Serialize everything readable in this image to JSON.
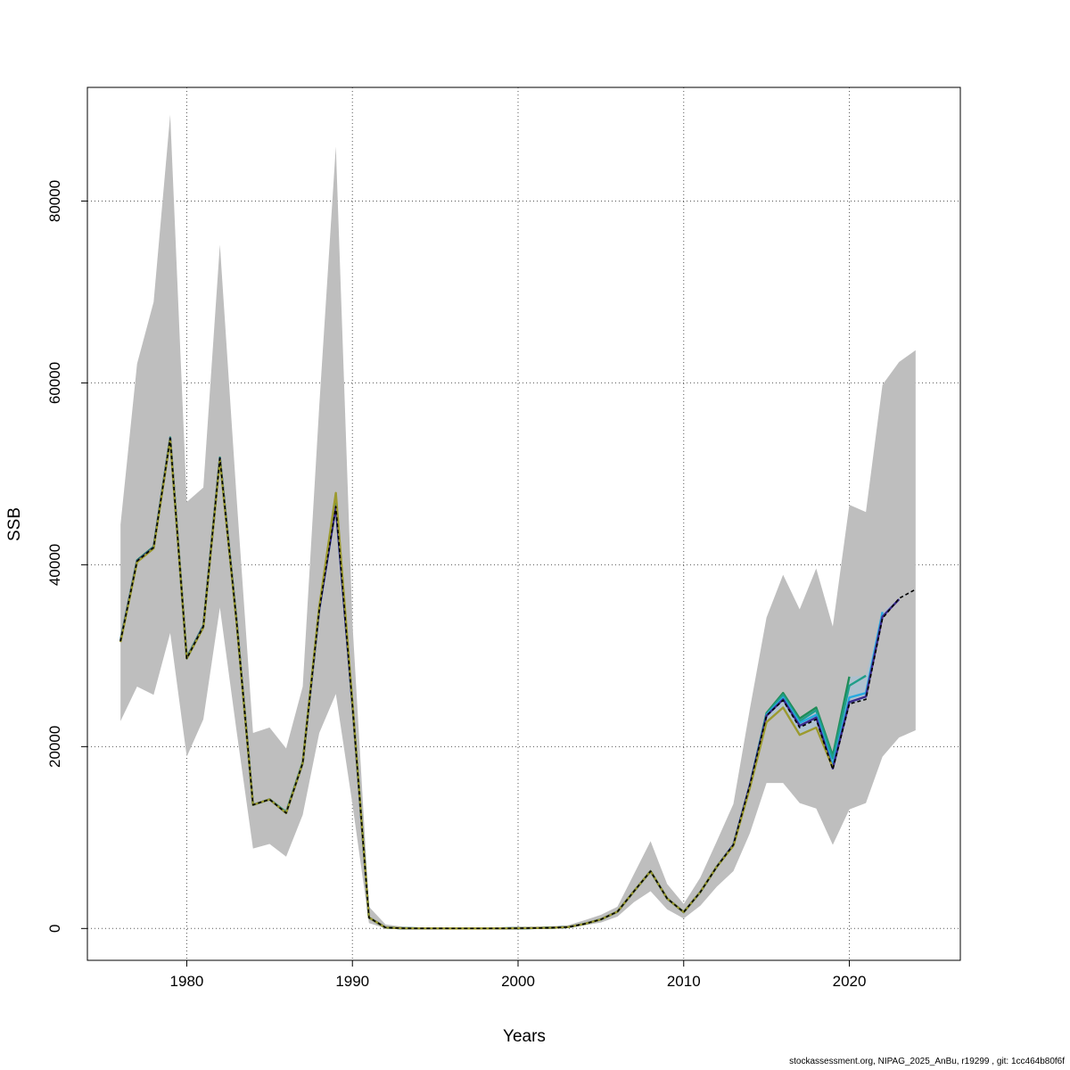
{
  "chart_data": {
    "type": "line",
    "title": "",
    "xlabel": "Years",
    "ylabel": "SSB",
    "xlim": [
      1974,
      2026.7
    ],
    "ylim": [
      -3500,
      92500
    ],
    "xticks": [
      1980,
      1990,
      2000,
      2010,
      2020
    ],
    "yticks": [
      0,
      20000,
      40000,
      60000,
      80000
    ],
    "grid": true,
    "legend": "none",
    "band_color": "#bebebe",
    "band_inner_color": "#a8c2d6",
    "band": {
      "x": [
        1976,
        1977,
        1978,
        1979,
        1980,
        1981,
        1982,
        1983,
        1984,
        1985,
        1986,
        1987,
        1988,
        1989,
        1990,
        1991,
        1992,
        1993,
        1994,
        1995,
        1996,
        1997,
        1998,
        1999,
        2000,
        2001,
        2002,
        2003,
        2004,
        2005,
        2006,
        2007,
        2008,
        2009,
        2010,
        2011,
        2012,
        2013,
        2014,
        2015,
        2016,
        2017,
        2018,
        2019,
        2020,
        2021,
        2022,
        2023,
        2024
      ],
      "lower": [
        22800,
        26600,
        25700,
        32500,
        18900,
        23000,
        35300,
        21800,
        8800,
        9300,
        7900,
        12500,
        21500,
        25800,
        13700,
        600,
        20,
        0,
        0,
        0,
        0,
        0,
        0,
        0,
        20,
        40,
        50,
        100,
        350,
        650,
        1300,
        2900,
        4100,
        2100,
        1100,
        2500,
        4600,
        6300,
        10500,
        16000,
        16000,
        13800,
        13200,
        9200,
        13100,
        13800,
        18900,
        21000,
        21800
      ],
      "upper": [
        44400,
        62100,
        68900,
        89500,
        46900,
        48500,
        75200,
        47600,
        21500,
        22100,
        19800,
        26600,
        57500,
        86000,
        33700,
        2400,
        450,
        200,
        100,
        100,
        50,
        50,
        50,
        100,
        150,
        200,
        250,
        350,
        900,
        1500,
        2400,
        6000,
        9600,
        4900,
        2700,
        5600,
        9600,
        13700,
        24200,
        34200,
        38900,
        35100,
        39600,
        33200,
        46600,
        45800,
        59800,
        62300,
        63600
      ]
    },
    "series": [
      {
        "color": "#1e8c57",
        "x": [
          1976,
          1977,
          1978,
          1979,
          1980,
          1981,
          1982,
          1983,
          1984,
          1985,
          1986,
          1987,
          1988,
          1989,
          1990,
          1991,
          1992,
          1993,
          1994,
          1995,
          1996,
          1997,
          1998,
          1999,
          2000,
          2001,
          2002,
          2003,
          2004,
          2005,
          2006,
          2007,
          2008,
          2009,
          2010,
          2011,
          2012,
          2013,
          2014,
          2015,
          2016,
          2017,
          2018,
          2019,
          2020
        ],
        "values": [
          31700,
          40500,
          42000,
          54000,
          29800,
          33300,
          51800,
          34000,
          13600,
          14200,
          12800,
          18300,
          35300,
          46700,
          24800,
          1200,
          100,
          30,
          10,
          10,
          5,
          5,
          5,
          10,
          30,
          50,
          80,
          150,
          500,
          1000,
          1850,
          4100,
          6300,
          3300,
          1800,
          4000,
          6800,
          9200,
          15800,
          23700,
          25900,
          23100,
          24300,
          19000,
          27700
        ]
      },
      {
        "color": "#1f9e89",
        "x": [
          1976,
          1977,
          1978,
          1979,
          1980,
          1981,
          1982,
          1983,
          1984,
          1985,
          1986,
          1987,
          1988,
          1989,
          1990,
          1991,
          1992,
          1993,
          1994,
          1995,
          1996,
          1997,
          1998,
          1999,
          2000,
          2001,
          2002,
          2003,
          2004,
          2005,
          2006,
          2007,
          2008,
          2009,
          2010,
          2011,
          2012,
          2013,
          2014,
          2015,
          2016,
          2017,
          2018,
          2019,
          2020,
          2021
        ],
        "values": [
          31600,
          40400,
          41900,
          53900,
          29700,
          33200,
          51700,
          33900,
          13600,
          14200,
          12800,
          18200,
          35200,
          46500,
          24700,
          1200,
          100,
          30,
          10,
          10,
          5,
          5,
          5,
          10,
          30,
          50,
          80,
          150,
          500,
          1000,
          1850,
          4100,
          6300,
          3300,
          1800,
          4000,
          6800,
          9200,
          15800,
          23600,
          25700,
          22800,
          24000,
          18700,
          26700,
          27800
        ]
      },
      {
        "color": "#26a9e0",
        "x": [
          1976,
          1977,
          1978,
          1979,
          1980,
          1981,
          1982,
          1983,
          1984,
          1985,
          1986,
          1987,
          1988,
          1989,
          1990,
          1991,
          1992,
          1993,
          1994,
          1995,
          1996,
          1997,
          1998,
          1999,
          2000,
          2001,
          2002,
          2003,
          2004,
          2005,
          2006,
          2007,
          2008,
          2009,
          2010,
          2011,
          2012,
          2013,
          2014,
          2015,
          2016,
          2017,
          2018,
          2019,
          2020,
          2021,
          2022
        ],
        "values": [
          31600,
          40400,
          41900,
          53900,
          29700,
          33200,
          51700,
          33900,
          13600,
          14200,
          12700,
          18200,
          35100,
          46400,
          24600,
          1200,
          100,
          30,
          10,
          10,
          5,
          5,
          5,
          10,
          30,
          50,
          80,
          150,
          500,
          1000,
          1850,
          4100,
          6300,
          3300,
          1800,
          4000,
          6800,
          9200,
          15800,
          23500,
          25400,
          22600,
          23500,
          18000,
          25400,
          25900,
          34800
        ]
      },
      {
        "color": "#3b2a8c",
        "x": [
          1976,
          1977,
          1978,
          1979,
          1980,
          1981,
          1982,
          1983,
          1984,
          1985,
          1986,
          1987,
          1988,
          1989,
          1990,
          1991,
          1992,
          1993,
          1994,
          1995,
          1996,
          1997,
          1998,
          1999,
          2000,
          2001,
          2002,
          2003,
          2004,
          2005,
          2006,
          2007,
          2008,
          2009,
          2010,
          2011,
          2012,
          2013,
          2014,
          2015,
          2016,
          2017,
          2018,
          2019,
          2020,
          2021,
          2022,
          2023
        ],
        "values": [
          31600,
          40400,
          41900,
          53900,
          29700,
          33200,
          51700,
          33900,
          13600,
          14200,
          12700,
          18200,
          35100,
          46400,
          24600,
          1200,
          100,
          30,
          10,
          10,
          5,
          5,
          5,
          10,
          30,
          50,
          80,
          150,
          500,
          1000,
          1850,
          4100,
          6300,
          3300,
          1800,
          4000,
          6800,
          9200,
          15800,
          23400,
          25200,
          22300,
          23200,
          17600,
          24900,
          25500,
          34300,
          36200
        ]
      },
      {
        "color": "#9c9a2e",
        "x": [
          1976,
          1977,
          1978,
          1979,
          1980,
          1981,
          1982,
          1983,
          1984,
          1985,
          1986,
          1987,
          1988,
          1989,
          1990,
          1991,
          1992,
          1993,
          1994,
          1995,
          1996,
          1997,
          1998,
          1999,
          2000,
          2001,
          2002,
          2003,
          2004,
          2005,
          2006,
          2007,
          2008,
          2009,
          2010,
          2011,
          2012,
          2013,
          2014,
          2015,
          2016,
          2017,
          2018,
          2019
        ],
        "values": [
          31500,
          40300,
          41800,
          53800,
          29700,
          33100,
          51600,
          33800,
          13600,
          14200,
          12700,
          18200,
          35400,
          47900,
          24800,
          1200,
          100,
          30,
          10,
          10,
          5,
          5,
          5,
          10,
          30,
          50,
          80,
          150,
          500,
          1000,
          1850,
          4100,
          6300,
          3300,
          1800,
          4000,
          6800,
          9100,
          15500,
          22700,
          24300,
          21300,
          22100,
          17700
        ]
      },
      {
        "color": "#000000",
        "dashed": true,
        "x": [
          1976,
          1977,
          1978,
          1979,
          1980,
          1981,
          1982,
          1983,
          1984,
          1985,
          1986,
          1987,
          1988,
          1989,
          1990,
          1991,
          1992,
          1993,
          1994,
          1995,
          1996,
          1997,
          1998,
          1999,
          2000,
          2001,
          2002,
          2003,
          2004,
          2005,
          2006,
          2007,
          2008,
          2009,
          2010,
          2011,
          2012,
          2013,
          2014,
          2015,
          2016,
          2017,
          2018,
          2019,
          2020,
          2021,
          2022,
          2023,
          2024
        ],
        "values": [
          31600,
          40400,
          41900,
          53900,
          29700,
          33200,
          51700,
          33900,
          13600,
          14200,
          12700,
          18200,
          35100,
          46400,
          24600,
          1200,
          100,
          30,
          10,
          10,
          5,
          5,
          5,
          10,
          30,
          50,
          80,
          150,
          500,
          1000,
          1850,
          4100,
          6300,
          3300,
          1800,
          4000,
          6800,
          9200,
          15800,
          23400,
          25100,
          22100,
          23000,
          17500,
          24700,
          25200,
          34100,
          36300,
          37300
        ]
      }
    ]
  },
  "footer_text": "stockassessment.org, NIPAG_2025_AnBu, r19299 , git: 1cc464b80f6f"
}
